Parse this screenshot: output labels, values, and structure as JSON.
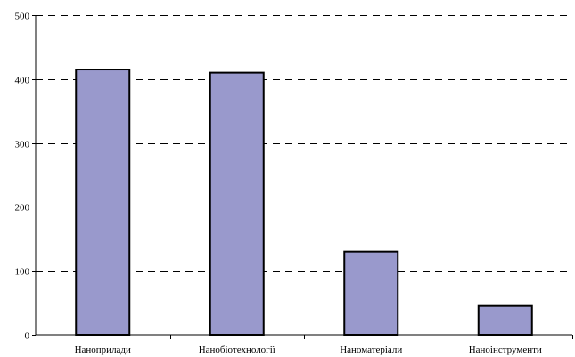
{
  "chart_data": {
    "type": "bar",
    "categories": [
      "Наноприлади",
      "Нанобіотехнології",
      "Наноматеріали",
      "Наноінструменти"
    ],
    "values": [
      415,
      410,
      130,
      45
    ],
    "ylim": [
      0,
      500
    ],
    "yticks": [
      0,
      100,
      200,
      300,
      400,
      500
    ],
    "grid": true,
    "title": "",
    "xlabel": "",
    "ylabel": "",
    "colors": {
      "bar_fill": "#9999cc",
      "bar_stroke": "#000000",
      "grid": "#000000",
      "axis": "#000000"
    }
  }
}
